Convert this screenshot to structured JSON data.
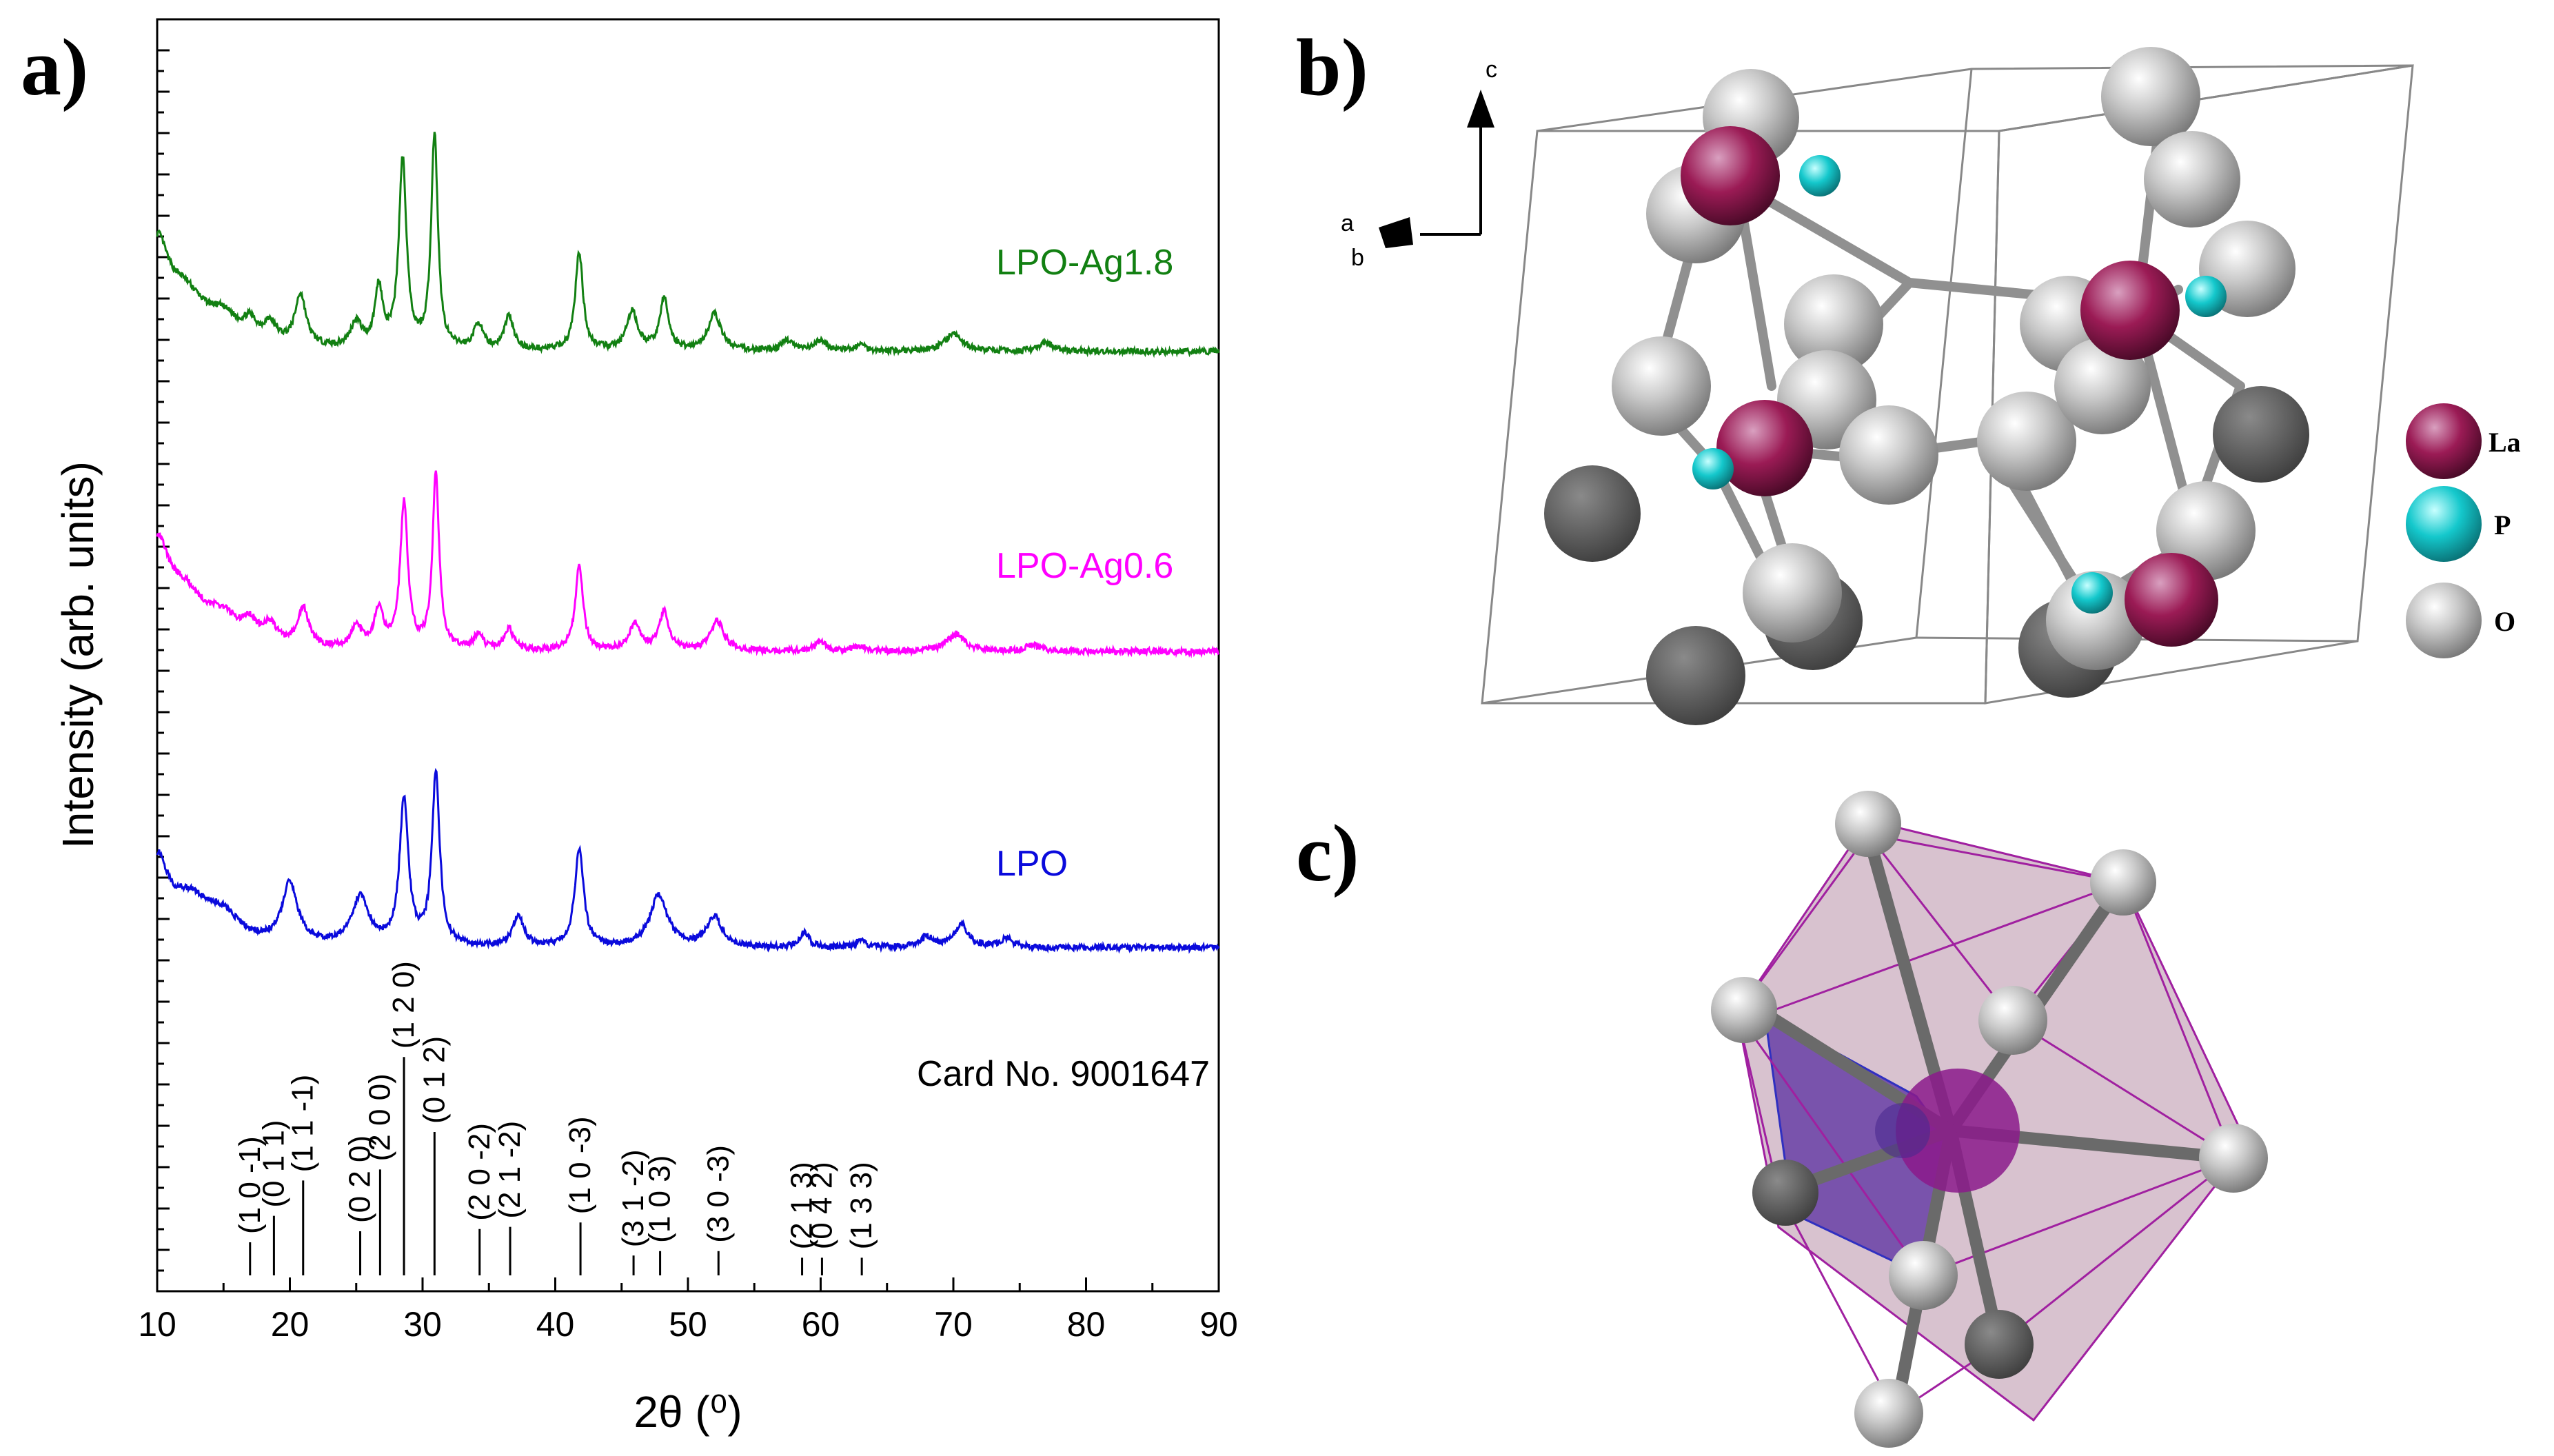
{
  "panels": {
    "a": "a)",
    "b": "b)",
    "c": "c)"
  },
  "chart_data": {
    "type": "line",
    "xlabel": "2θ (⁰)",
    "ylabel": "Intensity (arb. units)",
    "xlim": [
      10,
      90
    ],
    "x_ticks": [
      10,
      20,
      30,
      40,
      50,
      60,
      70,
      80,
      90
    ],
    "series": [
      {
        "name": "LPO-Ag1.8",
        "color": "#128012",
        "baseline": 250,
        "peaks": [
          [
            10.0,
            210,
            1.0
          ],
          [
            12.0,
            120,
            2.0
          ],
          [
            15.0,
            55,
            1.5
          ],
          [
            17.0,
            40,
            0.6
          ],
          [
            18.5,
            45,
            0.6
          ],
          [
            20.8,
            120,
            0.5
          ],
          [
            25.0,
            60,
            0.5
          ],
          [
            26.7,
            140,
            0.35
          ],
          [
            28.5,
            440,
            0.35
          ],
          [
            30.9,
            500,
            0.3
          ],
          [
            34.2,
            60,
            0.4
          ],
          [
            36.5,
            80,
            0.4
          ],
          [
            41.8,
            230,
            0.35
          ],
          [
            45.8,
            90,
            0.5
          ],
          [
            48.2,
            120,
            0.4
          ],
          [
            52.0,
            85,
            0.6
          ],
          [
            57.5,
            25,
            0.5
          ],
          [
            60.0,
            25,
            0.5
          ],
          [
            63.0,
            15,
            0.5
          ],
          [
            70.0,
            40,
            0.8
          ],
          [
            77.0,
            20,
            0.6
          ]
        ]
      },
      {
        "name": "LPO-Ag0.6",
        "color": "#ff00ff",
        "baseline": 250,
        "peaks": [
          [
            10.0,
            210,
            1.0
          ],
          [
            12.0,
            120,
            2.0
          ],
          [
            15.0,
            55,
            1.5
          ],
          [
            17.0,
            40,
            0.6
          ],
          [
            18.5,
            45,
            0.6
          ],
          [
            21.0,
            90,
            0.5
          ],
          [
            25.0,
            50,
            0.5
          ],
          [
            26.7,
            90,
            0.4
          ],
          [
            28.6,
            340,
            0.35
          ],
          [
            31.0,
            410,
            0.3
          ],
          [
            34.2,
            35,
            0.4
          ],
          [
            36.5,
            50,
            0.4
          ],
          [
            41.8,
            200,
            0.35
          ],
          [
            46.0,
            60,
            0.5
          ],
          [
            48.2,
            90,
            0.45
          ],
          [
            52.2,
            70,
            0.6
          ],
          [
            60.0,
            20,
            0.5
          ],
          [
            63.0,
            12,
            0.5
          ],
          [
            70.2,
            40,
            0.8
          ],
          [
            76.0,
            15,
            0.6
          ]
        ]
      },
      {
        "name": "LPO",
        "color": "#0a0adc",
        "baseline": 250,
        "peaks": [
          [
            10.0,
            180,
            1.0
          ],
          [
            12.5,
            100,
            2.0
          ],
          [
            15.0,
            50,
            1.5
          ],
          [
            20.0,
            140,
            0.7
          ],
          [
            25.3,
            110,
            0.8
          ],
          [
            28.6,
            340,
            0.4
          ],
          [
            31.0,
            400,
            0.35
          ],
          [
            37.2,
            70,
            0.5
          ],
          [
            41.8,
            230,
            0.4
          ],
          [
            47.8,
            120,
            0.8
          ],
          [
            52.0,
            70,
            0.7
          ],
          [
            58.8,
            35,
            0.4
          ],
          [
            63.0,
            15,
            0.5
          ],
          [
            68.0,
            25,
            0.6
          ],
          [
            70.6,
            55,
            0.6
          ],
          [
            74.0,
            20,
            0.6
          ]
        ]
      }
    ],
    "reference": {
      "label": "Card No. 9001647",
      "sticks": [
        {
          "x": 17.0,
          "h": 0.15,
          "hkl": "(1 0 -1)"
        },
        {
          "x": 18.8,
          "h": 0.27,
          "hkl": "(0 1 1)"
        },
        {
          "x": 21.0,
          "h": 0.43,
          "hkl": "(1 1 -1)"
        },
        {
          "x": 25.3,
          "h": 0.2,
          "hkl": "(0 2 0)"
        },
        {
          "x": 26.8,
          "h": 0.48,
          "hkl": "(2 0 0)"
        },
        {
          "x": 28.6,
          "h": 0.99,
          "hkl": "(1 2 0)"
        },
        {
          "x": 30.9,
          "h": 0.65,
          "hkl": "(0 1 2)"
        },
        {
          "x": 34.3,
          "h": 0.21,
          "hkl": "(2 0 -2)"
        },
        {
          "x": 36.6,
          "h": 0.22,
          "hkl": "(2 1 -2)"
        },
        {
          "x": 41.9,
          "h": 0.24,
          "hkl": "(1 0 -3)"
        },
        {
          "x": 45.9,
          "h": 0.09,
          "hkl": "(3 1 -2)"
        },
        {
          "x": 47.9,
          "h": 0.11,
          "hkl": "(1 0 3)"
        },
        {
          "x": 52.3,
          "h": 0.11,
          "hkl": "(3 0 -3)"
        },
        {
          "x": 58.6,
          "h": 0.08,
          "hkl": "(2 1 3)"
        },
        {
          "x": 60.1,
          "h": 0.08,
          "hkl": "(0 4 2)"
        },
        {
          "x": 63.1,
          "h": 0.08,
          "hkl": "(1 3 3)"
        }
      ]
    }
  },
  "structure": {
    "axes": {
      "c": "c",
      "a": "a",
      "b": "b"
    },
    "legend": [
      {
        "label": "La",
        "color": "#9b1b55"
      },
      {
        "label": "P",
        "color": "#14c8cc"
      },
      {
        "label": "O",
        "color": "#d8d8d8"
      }
    ]
  }
}
